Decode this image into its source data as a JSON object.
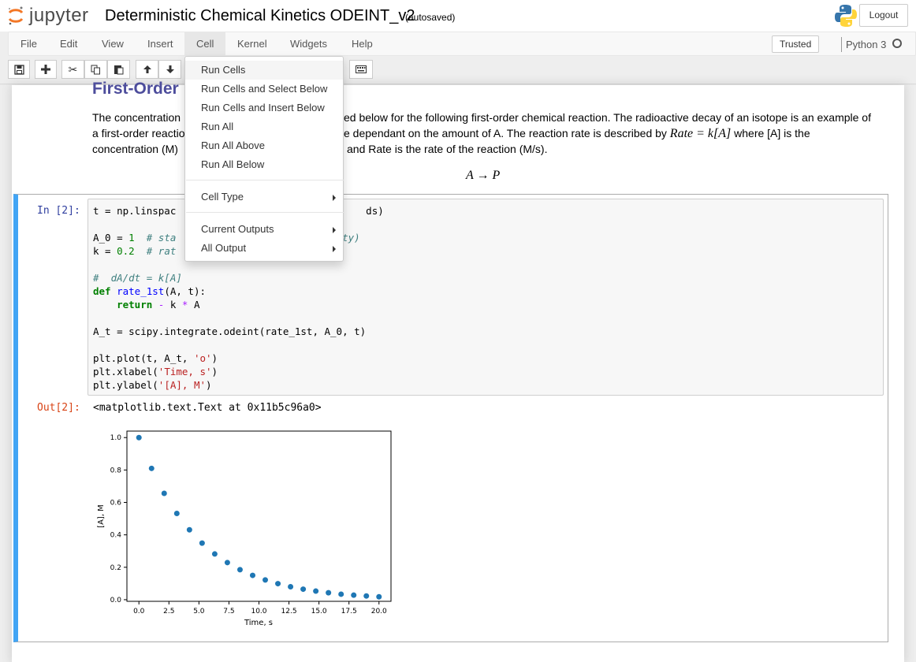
{
  "header": {
    "logo_text": "jupyter",
    "notebook_title": "Deterministic Chemical Kinetics ODEINT_v2",
    "autosave_status": "(autosaved)",
    "logout_label": "Logout"
  },
  "menubar": {
    "items": [
      "File",
      "Edit",
      "View",
      "Insert",
      "Cell",
      "Kernel",
      "Widgets",
      "Help"
    ],
    "open_menu": "Cell",
    "trusted_label": "Trusted",
    "kernel_name": "Python 3"
  },
  "toolbar": {
    "buttons": [
      "save-icon",
      "plus-icon",
      "cut-icon",
      "copy-icon",
      "paste-icon",
      "arrow-up-icon",
      "arrow-down-icon",
      "keyboard-icon"
    ]
  },
  "cell_menu": {
    "items": [
      {
        "label": "Run Cells"
      },
      {
        "label": "Run Cells and Select Below"
      },
      {
        "label": "Run Cells and Insert Below"
      },
      {
        "label": "Run All"
      },
      {
        "label": "Run All Above"
      },
      {
        "label": "Run All Below"
      },
      {
        "label": "Cell Type"
      },
      {
        "label": "Current Outputs"
      },
      {
        "label": "All Output"
      }
    ]
  },
  "markdown": {
    "title": "First-Order",
    "line1_left": "The concentration",
    "line1_right": "ed below for the following first-order chemical reaction. The radioactive decay of an isotope is an example of",
    "line2_left": "a first-order reactio",
    "line2_mid": "e dependant on the amount of A. The reaction rate is described by ",
    "line2_rate": "Rate = k[A]",
    "line2_end": " where [A] is the",
    "line3_left": "concentration (M)",
    "line3_right": "and Rate is the rate of the reaction (M/s).",
    "equation": "A → P"
  },
  "code_cell": {
    "in_prompt": "In [2]:",
    "out_prompt": "Out[2]:",
    "output_text": "<matplotlib.text.Text at 0x11b5c96a0>"
  },
  "chart_data": {
    "type": "scatter",
    "xlabel": "Time, s",
    "ylabel": "[A], M",
    "xlim": [
      -1,
      21
    ],
    "ylim": [
      -0.01,
      1.04
    ],
    "xticks": [
      "0.0",
      "2.5",
      "5.0",
      "7.5",
      "10.0",
      "12.5",
      "15.0",
      "17.5",
      "20.0"
    ],
    "yticks": [
      "0.0",
      "0.2",
      "0.4",
      "0.6",
      "0.8",
      "1.0"
    ],
    "x": [
      0,
      1.053,
      2.105,
      3.158,
      4.211,
      5.263,
      6.316,
      7.368,
      8.421,
      9.474,
      10.526,
      11.579,
      12.632,
      13.684,
      14.737,
      15.789,
      16.842,
      17.895,
      18.947,
      20.0
    ],
    "y": [
      1.0,
      0.81,
      0.656,
      0.532,
      0.431,
      0.349,
      0.282,
      0.229,
      0.185,
      0.15,
      0.122,
      0.099,
      0.08,
      0.065,
      0.053,
      0.043,
      0.034,
      0.028,
      0.023,
      0.018
    ],
    "color": "#1f77b4"
  }
}
